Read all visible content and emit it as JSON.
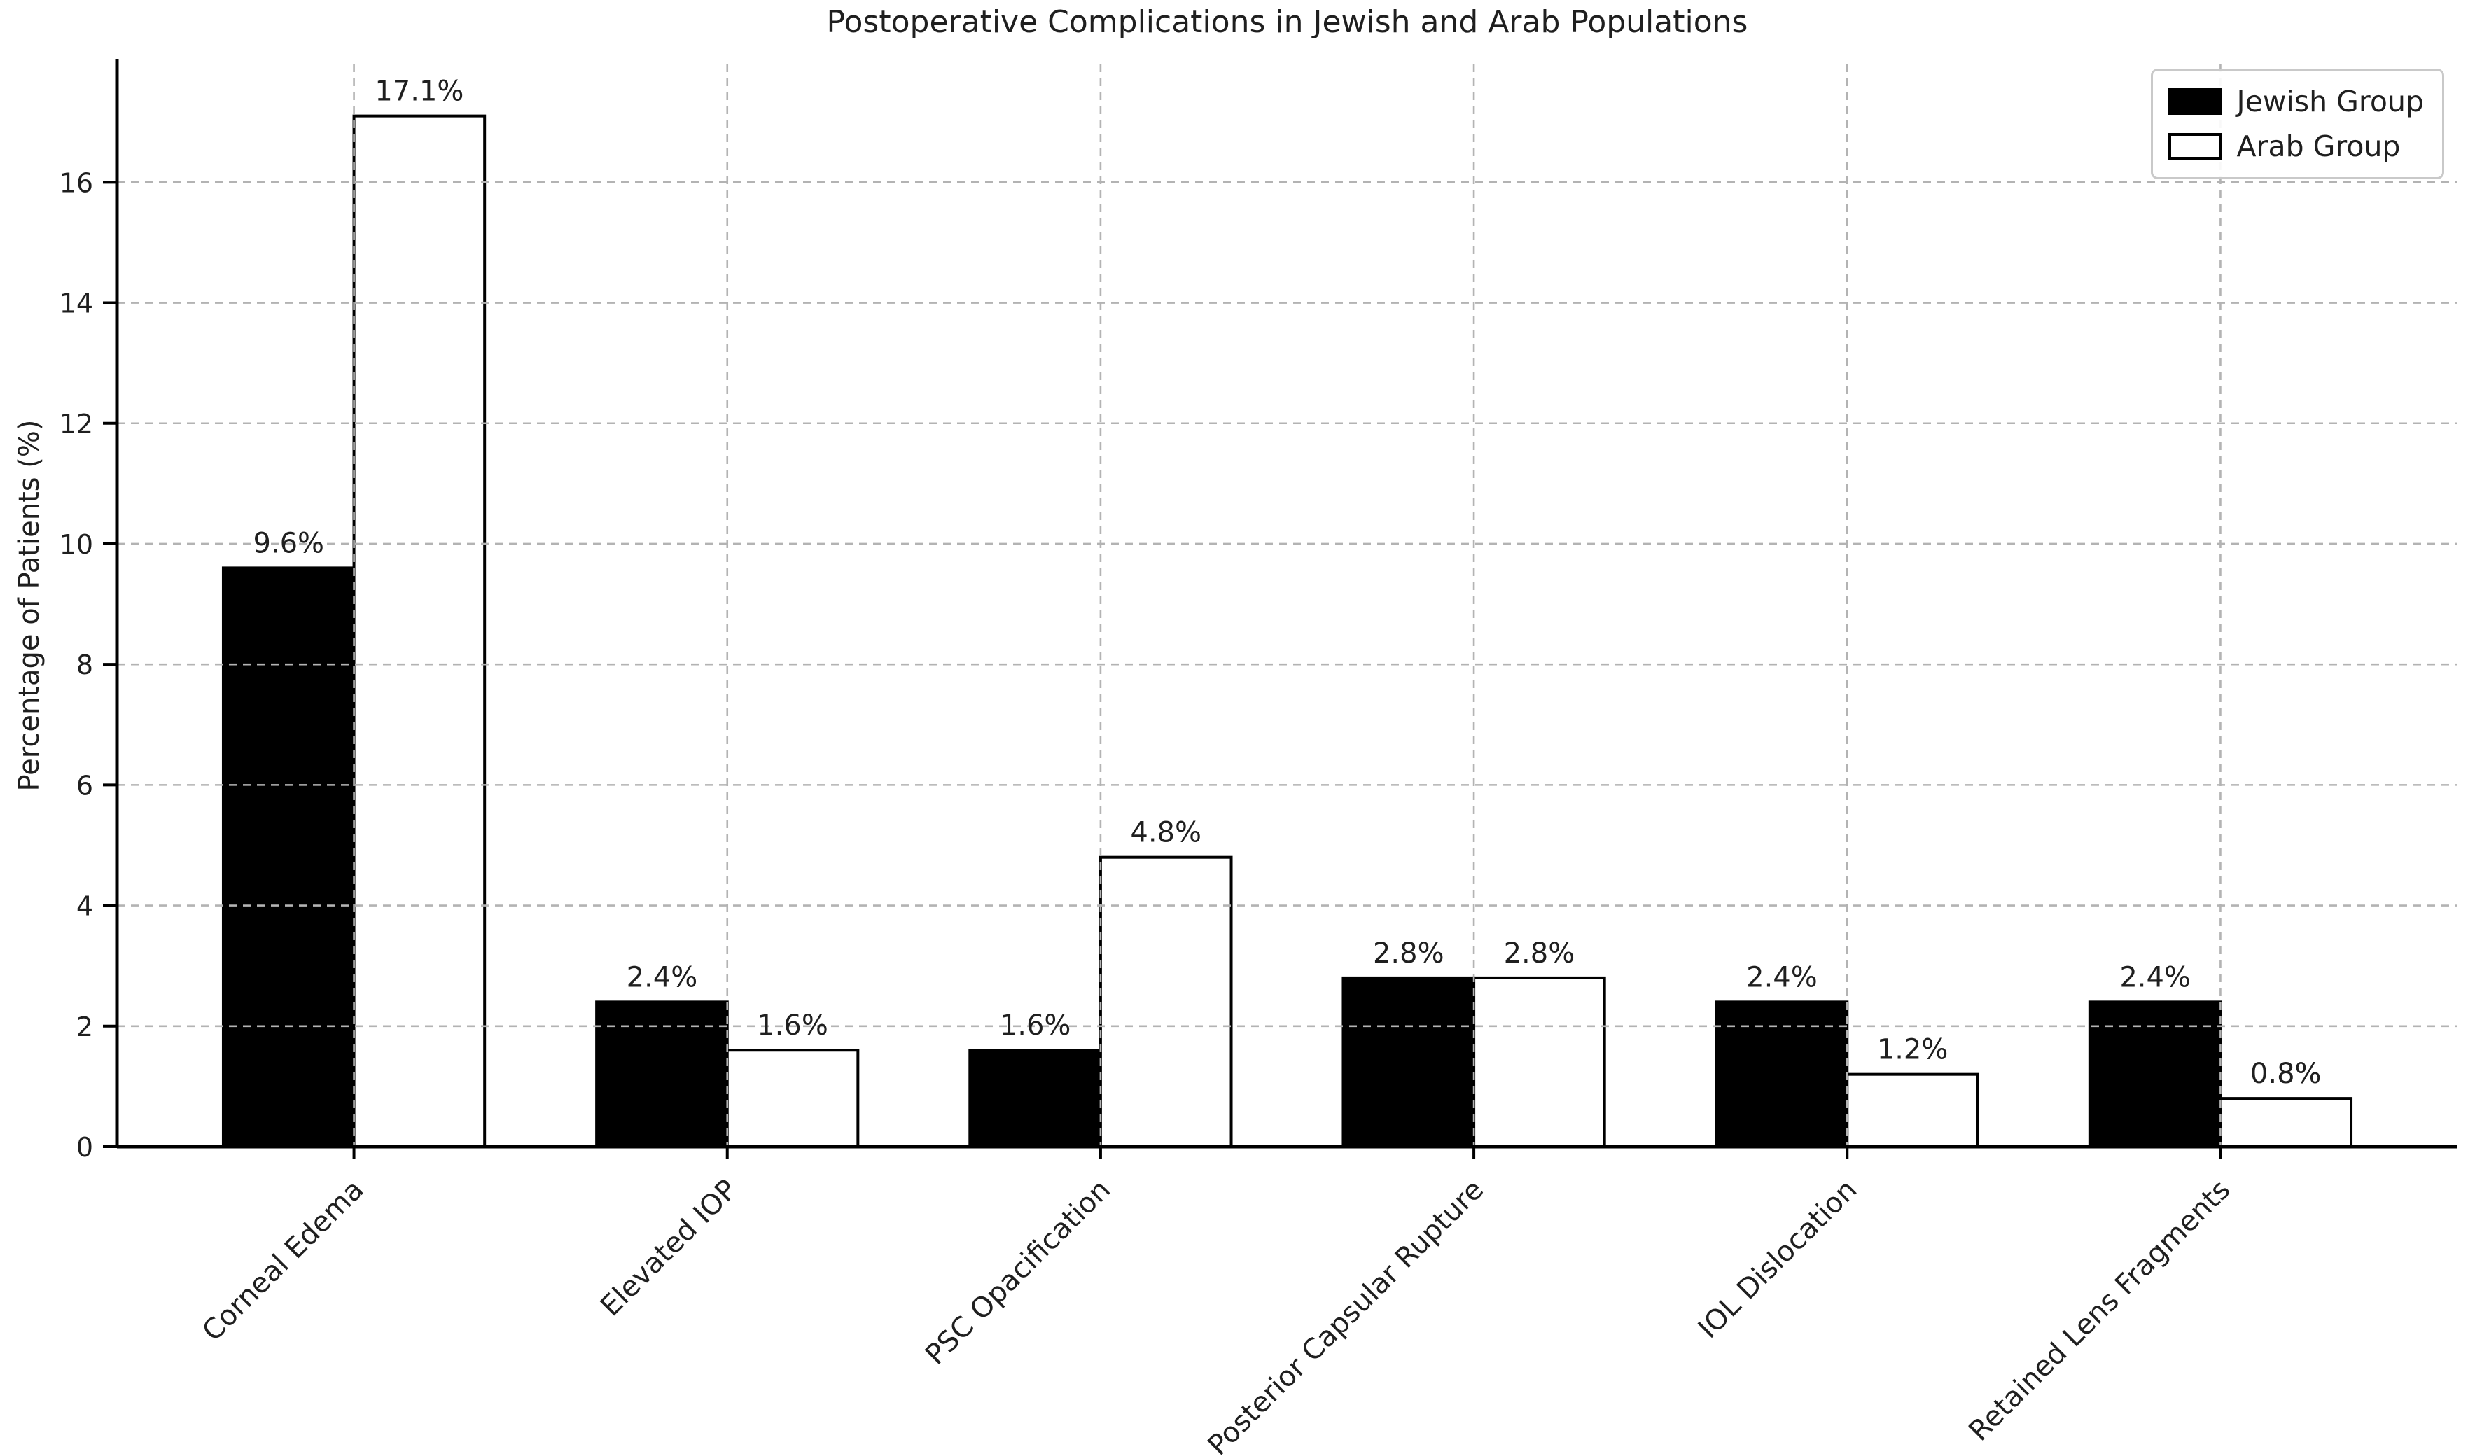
{
  "chart_data": {
    "type": "bar",
    "title": "Postoperative Complications in Jewish and Arab Populations",
    "xlabel": "",
    "ylabel": "Percentage of Patients (%)",
    "categories": [
      "Corneal Edema",
      "Elevated IOP",
      "PSC Opacification",
      "Posterior Capsular Rupture",
      "IOL Dislocation",
      "Retained Lens Fragments"
    ],
    "series": [
      {
        "name": "Jewish Group",
        "values": [
          9.6,
          2.4,
          1.6,
          2.8,
          2.4,
          2.4
        ],
        "labels": [
          "9.6%",
          "2.4%",
          "1.6%",
          "2.8%",
          "2.4%",
          "2.4%"
        ],
        "fill": "#000000",
        "edge": "#000000"
      },
      {
        "name": "Arab Group",
        "values": [
          17.1,
          1.6,
          4.8,
          2.8,
          1.2,
          0.8
        ],
        "labels": [
          "17.1%",
          "1.6%",
          "4.8%",
          "2.8%",
          "1.2%",
          "0.8%"
        ],
        "fill": "#ffffff",
        "edge": "#000000"
      }
    ],
    "y_ticks": [
      0,
      2,
      4,
      6,
      8,
      10,
      12,
      14,
      16
    ],
    "ylim": [
      0,
      17.955
    ],
    "grid": "dashed-both-axes-drawn-above-bars",
    "legend_position": "upper-right",
    "colors": {
      "axis": "#000000",
      "grid": "#b3b3b3",
      "text": "#1f1f1f",
      "background": "#ffffff"
    }
  }
}
